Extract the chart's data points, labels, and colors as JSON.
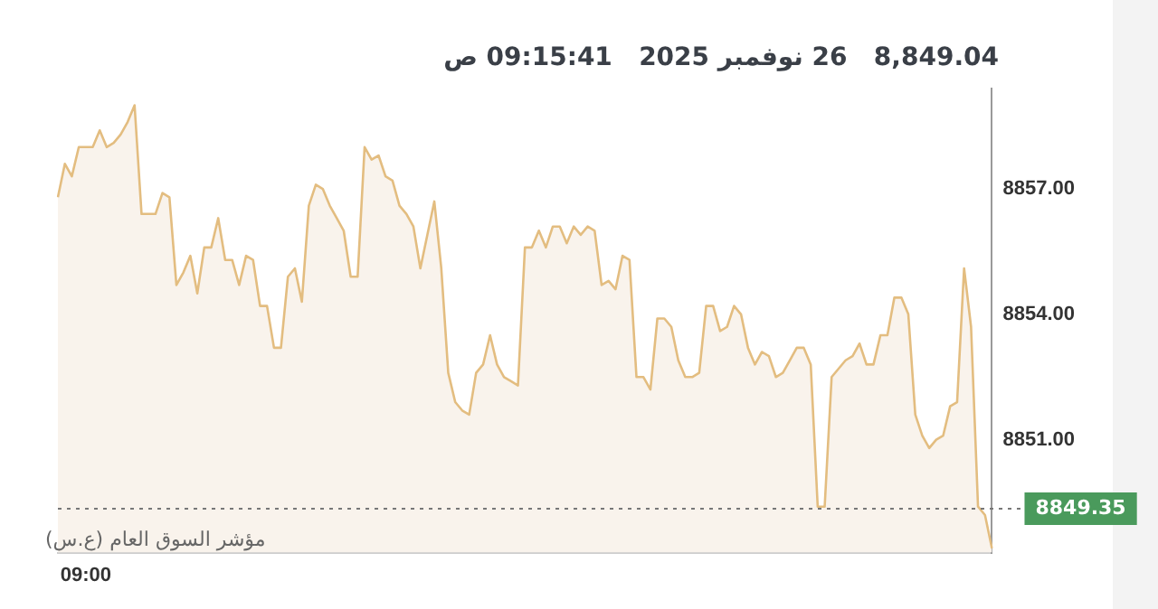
{
  "chart_data": {
    "type": "area",
    "title": "8,849.04   26 نوفمبر 2025   09:15:41 ص",
    "annotations": [
      "مؤشر السوق العام (ع.س)"
    ],
    "categories": [
      null,
      null,
      null,
      null,
      "09:00",
      null,
      null,
      null,
      null,
      null,
      null,
      null,
      null,
      null,
      null,
      null,
      null,
      null,
      null,
      null,
      null,
      null,
      null,
      null,
      null,
      null,
      null,
      null,
      null,
      null,
      null,
      null,
      null,
      null,
      null,
      null,
      null,
      null,
      null,
      null,
      null,
      null,
      null,
      null,
      null,
      null,
      null,
      null,
      null,
      null,
      null,
      null,
      null,
      null,
      null,
      null,
      null,
      null,
      null,
      null,
      null,
      null,
      null,
      null,
      null,
      null,
      null,
      null,
      null,
      null,
      null,
      null,
      null,
      null,
      null,
      null,
      null,
      null,
      null,
      null,
      null,
      null,
      null,
      null,
      null,
      null,
      null,
      null,
      null,
      null,
      null,
      null,
      null,
      null,
      null,
      null,
      null,
      null,
      null,
      null,
      null,
      null,
      null,
      null,
      null,
      null,
      null,
      null,
      null,
      null,
      null,
      null,
      null,
      null,
      null,
      null,
      null,
      null,
      null,
      null,
      null,
      null,
      null,
      null,
      null,
      null,
      null,
      null,
      null,
      null,
      null,
      null,
      null,
      null,
      null
    ],
    "series": [
      {
        "color": "#e3bd80",
        "values": [
          8856.8,
          8857.6,
          8857.3,
          8858.0,
          8858.0,
          8858.0,
          8858.4,
          8858.0,
          8858.1,
          8858.3,
          8858.6,
          8859.0,
          8856.4,
          8856.4,
          8856.4,
          8856.9,
          8856.8,
          8854.7,
          8855.0,
          8855.4,
          8854.5,
          8855.6,
          8855.6,
          8856.3,
          8855.3,
          8855.3,
          8854.7,
          8855.4,
          8855.3,
          8854.2,
          8854.2,
          8853.2,
          8853.2,
          8854.9,
          8855.1,
          8854.3,
          8856.6,
          8857.1,
          8857.0,
          8856.6,
          8856.3,
          8856.0,
          8854.9,
          8854.9,
          8858.0,
          8857.7,
          8857.8,
          8857.3,
          8857.2,
          8856.6,
          8856.4,
          8856.1,
          8855.1,
          8855.9,
          8856.7,
          8855.1,
          8852.6,
          8851.9,
          8851.7,
          8851.6,
          8852.6,
          8852.8,
          8853.5,
          8852.8,
          8852.5,
          8852.4,
          8852.3,
          8855.6,
          8855.6,
          8856.0,
          8855.6,
          8856.1,
          8856.1,
          8855.7,
          8856.1,
          8855.9,
          8856.1,
          8856.0,
          8854.7,
          8854.8,
          8854.6,
          8855.4,
          8855.3,
          8852.5,
          8852.5,
          8852.2,
          8853.9,
          8853.9,
          8853.7,
          8852.9,
          8852.5,
          8852.5,
          8852.6,
          8854.2,
          8854.2,
          8853.6,
          8853.7,
          8854.2,
          8854.0,
          8853.2,
          8852.8,
          8853.1,
          8853.0,
          8852.5,
          8852.6,
          8852.9,
          8853.2,
          8853.2,
          8852.8,
          8849.4,
          8849.4,
          8852.5,
          8852.7,
          8852.9,
          8853.0,
          8853.3,
          8852.8,
          8852.8,
          8853.5,
          8853.5,
          8854.4,
          8854.4,
          8854.0,
          8851.6,
          8851.1,
          8850.8,
          8851.0,
          8851.1,
          8851.8,
          8851.9,
          8855.1,
          8853.7,
          8849.4,
          8849.2,
          8848.4
        ]
      }
    ],
    "ylim": [
      8848.3,
      8859.4
    ],
    "yticks": [
      {
        "value": 8851,
        "label": "8851.00"
      },
      {
        "value": 8854,
        "label": "8854.00"
      },
      {
        "value": 8857,
        "label": "8857.00"
      }
    ],
    "ref_lines": [
      {
        "axis": "y",
        "value": 8849.35,
        "label": "8849.35",
        "color": "#777777",
        "line_style": "dotted"
      }
    ],
    "grid": false,
    "legend": false
  }
}
